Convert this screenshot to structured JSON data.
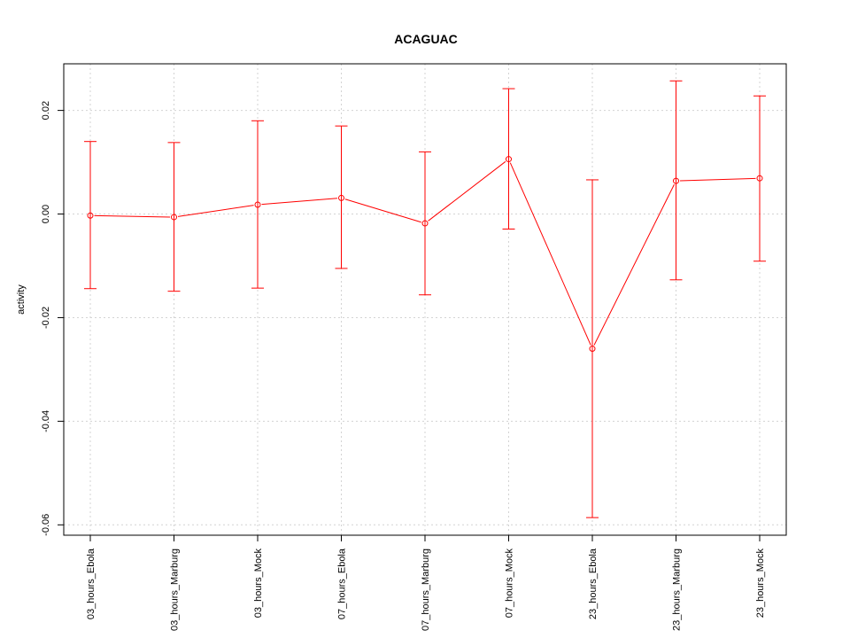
{
  "chart_data": {
    "type": "line",
    "title": "ACAGUAC",
    "xlabel": "",
    "ylabel": "activity",
    "categories": [
      "03_hours_Ebola",
      "03_hours_Marburg",
      "03_hours_Mock",
      "07_hours_Ebola",
      "07_hours_Marburg",
      "07_hours_Mock",
      "23_hours_Ebola",
      "23_hours_Marburg",
      "23_hours_Mock"
    ],
    "series": [
      {
        "values": [
          -0.0003,
          -0.0006,
          0.0018,
          0.0031,
          -0.0018,
          0.0106,
          -0.026,
          0.0064,
          0.0069
        ],
        "upper": [
          0.014,
          0.0138,
          0.018,
          0.017,
          0.012,
          0.0242,
          0.0066,
          0.0257,
          0.0228
        ],
        "lower": [
          -0.0144,
          -0.0149,
          -0.0143,
          -0.0105,
          -0.0156,
          -0.0029,
          -0.0586,
          -0.0127,
          -0.0091
        ]
      }
    ],
    "yticks": [
      -0.06,
      -0.04,
      -0.02,
      0.0,
      0.02
    ],
    "ytick_labels": [
      "-0.06",
      "-0.04",
      "-0.02",
      "0.00",
      "0.02"
    ],
    "ylim": [
      -0.062,
      0.029
    ],
    "grid": true,
    "series_color": "#ff0000",
    "grid_color": "#d3d3d3"
  }
}
